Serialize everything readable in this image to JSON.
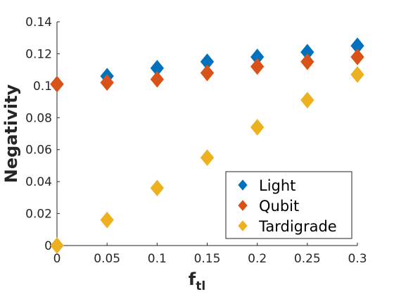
{
  "chart_data": {
    "type": "scatter",
    "title": "",
    "xlabel": "f",
    "xlabel_subscript": "tl",
    "ylabel": "Negativity",
    "xlim": [
      0,
      0.3
    ],
    "ylim": [
      0,
      0.14
    ],
    "x_ticks": [
      "0",
      "0.05",
      "0.1",
      "0.15",
      "0.2",
      "0.25",
      "0.3"
    ],
    "y_ticks": [
      "0",
      "0.02",
      "0.04",
      "0.06",
      "0.08",
      "0.1",
      "0.12",
      "0.14"
    ],
    "grid": false,
    "legend_position": "bottom-right",
    "marker": "diamond",
    "series": [
      {
        "name": "Light",
        "color": "#0072BD",
        "x": [
          0,
          0.05,
          0.1,
          0.15,
          0.2,
          0.25,
          0.3
        ],
        "y": [
          0.101,
          0.106,
          0.111,
          0.115,
          0.118,
          0.121,
          0.125
        ]
      },
      {
        "name": "Qubit",
        "color": "#D95319",
        "x": [
          0,
          0.05,
          0.1,
          0.15,
          0.2,
          0.25,
          0.3
        ],
        "y": [
          0.101,
          0.102,
          0.104,
          0.108,
          0.112,
          0.115,
          0.118
        ]
      },
      {
        "name": "Tardigrade",
        "color": "#EDB120",
        "x": [
          0,
          0.05,
          0.1,
          0.15,
          0.2,
          0.25,
          0.3
        ],
        "y": [
          0.0,
          0.016,
          0.036,
          0.055,
          0.074,
          0.091,
          0.107
        ]
      }
    ]
  }
}
